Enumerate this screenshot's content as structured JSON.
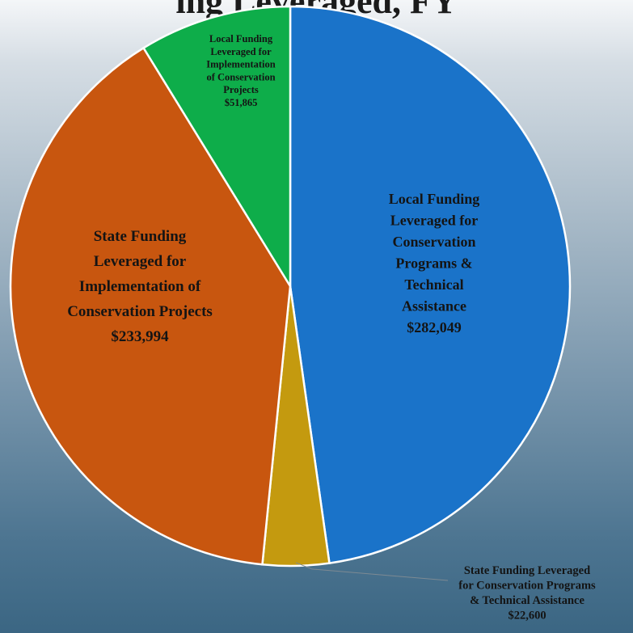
{
  "chart_data": {
    "type": "pie",
    "title": "ing Leveraged, FY",
    "slices": [
      {
        "label": "Local Funding Leveraged for Conservation Programs & Technical Assistance",
        "value": 282049,
        "value_label": "$282,049",
        "color": "#1a73c9",
        "label_lines": [
          "Local Funding",
          "Leveraged for",
          "Conservation",
          "Programs &",
          "Technical",
          "Assistance",
          "$282,049"
        ]
      },
      {
        "label": "State Funding Leveraged for Conservation Programs & Technical Assistance",
        "value": 22600,
        "value_label": "$22,600",
        "color": "#c49a0f",
        "label_lines": [
          "State Funding Leveraged",
          "for Conservation Programs",
          "& Technical Assistance",
          "$22,600"
        ]
      },
      {
        "label": "State Funding Leveraged for Implementation of Conservation Projects",
        "value": 233994,
        "value_label": "$233,994",
        "color": "#c8560f",
        "label_lines": [
          "State Funding",
          "Leveraged for",
          "Implementation of",
          "Conservation Projects",
          "$233,994"
        ]
      },
      {
        "label": "Local Funding Leveraged for Implementation of Conservation Projects",
        "value": 51865,
        "value_label": "$51,865",
        "color": "#0ead4a",
        "label_lines": [
          "Local Funding",
          "Leveraged for",
          "Implementation",
          "of Conservation",
          "Projects",
          "$51,865"
        ]
      }
    ]
  }
}
